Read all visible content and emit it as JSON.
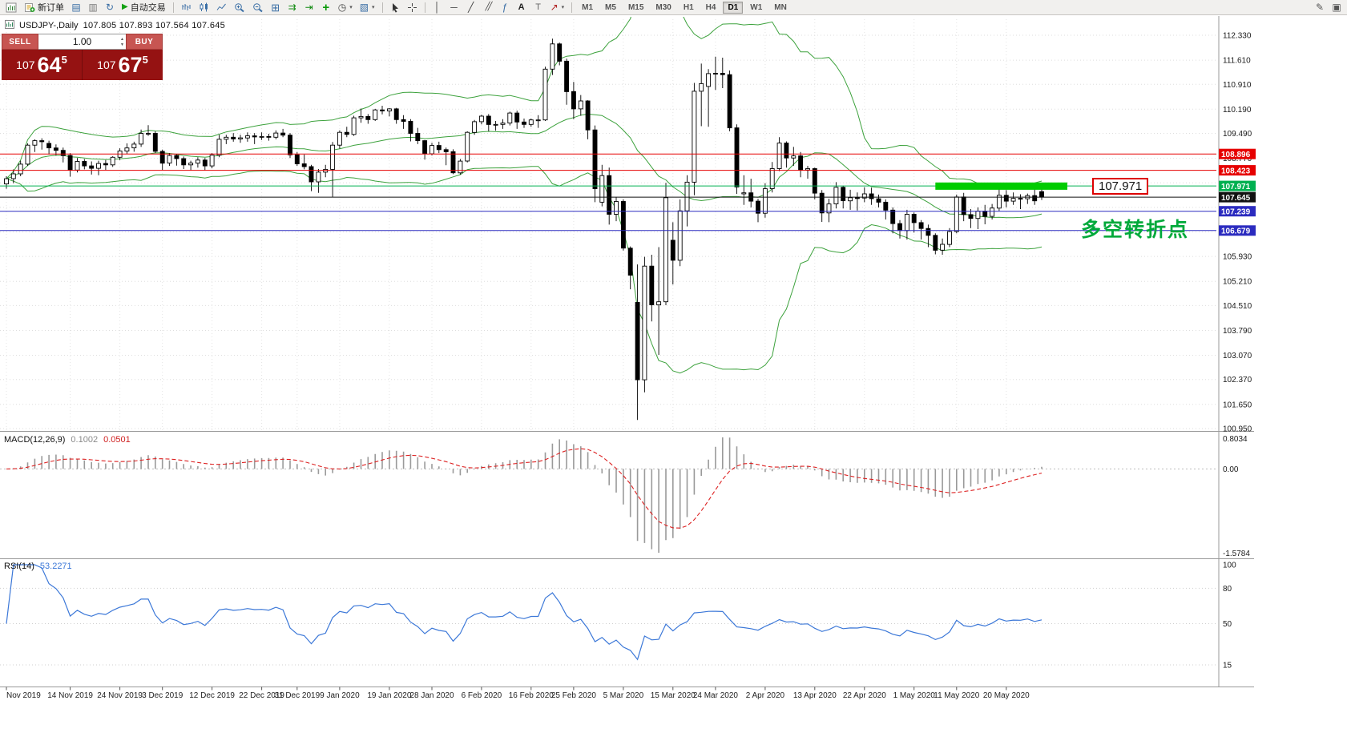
{
  "toolbar": {
    "items": [
      {
        "name": "new-chart-button",
        "icon": "newchart"
      },
      {
        "name": "new-order-button",
        "icon": "order",
        "label": "新订单"
      },
      {
        "name": "charts-icon",
        "icon": "chartswin"
      },
      {
        "name": "profiles-icon",
        "icon": "profiles"
      },
      {
        "name": "refresh-icon",
        "icon": "refresh"
      },
      {
        "name": "autotrading-button",
        "icon": "play",
        "label": "自动交易"
      },
      {
        "type": "sep"
      },
      {
        "name": "bar-chart-button",
        "icon": "bars"
      },
      {
        "name": "candlestick-chart-button",
        "icon": "candles"
      },
      {
        "name": "line-chart-button",
        "icon": "linechart"
      },
      {
        "name": "zoom-in-button",
        "icon": "zoomin"
      },
      {
        "name": "zoom-out-button",
        "icon": "zoomout"
      },
      {
        "name": "tile-windows-button",
        "icon": "tile"
      },
      {
        "name": "auto-scroll-button",
        "icon": "autoscroll"
      },
      {
        "name": "chart-shift-button",
        "icon": "shift"
      },
      {
        "name": "indicators-button",
        "icon": "plus"
      },
      {
        "name": "periods-dropdown",
        "icon": "clock",
        "dropdown": true
      },
      {
        "name": "templates-dropdown",
        "icon": "template",
        "dropdown": true
      },
      {
        "type": "sep"
      },
      {
        "name": "cursor-button",
        "icon": "cursor"
      },
      {
        "name": "crosshair-button",
        "icon": "crosshair"
      },
      {
        "type": "sep"
      },
      {
        "name": "vertical-line-button",
        "icon": "vline"
      },
      {
        "name": "horizontal-line-button",
        "icon": "hline"
      },
      {
        "name": "trendline-button",
        "icon": "tline"
      },
      {
        "name": "channel-button",
        "icon": "channel"
      },
      {
        "name": "fibonacci-button",
        "icon": "fibo"
      },
      {
        "name": "text-button",
        "icon": "textA"
      },
      {
        "name": "text-label-button",
        "icon": "labelT"
      },
      {
        "name": "arrows-dropdown",
        "icon": "arrow",
        "dropdown": true
      },
      {
        "type": "sep"
      },
      {
        "type": "timeframes"
      },
      {
        "type": "spacer"
      },
      {
        "name": "edit-icon",
        "icon": "edit"
      },
      {
        "name": "select-icon",
        "icon": "select"
      }
    ],
    "timeframes": [
      "M1",
      "M5",
      "M15",
      "M30",
      "H1",
      "H4",
      "D1",
      "W1",
      "MN"
    ],
    "active_timeframe": "D1"
  },
  "chart": {
    "symbol_period": "USDJPY-,Daily",
    "ohlc_values": "107.805 107.893 107.564 107.645"
  },
  "trade_panel": {
    "sell_label": "SELL",
    "buy_label": "BUY",
    "volume": "1.00",
    "sell_price": {
      "base": "107",
      "pips": "64",
      "sub": "5"
    },
    "buy_price": {
      "base": "107",
      "pips": "67",
      "sub": "5"
    }
  },
  "annotations": {
    "price_callout": "107.971",
    "turning_point_text": "多空转折点",
    "turning_point_color": "#00a93a"
  },
  "chart_data": {
    "type": "candlestick",
    "symbol": "USDJPY-",
    "timeframe": "Daily",
    "last_ohlc": {
      "open": 107.805,
      "high": 107.893,
      "low": 107.564,
      "close": 107.645
    },
    "candles": [
      [
        108.03,
        108.25,
        107.89,
        108.18
      ],
      [
        108.18,
        108.45,
        108.05,
        108.32
      ],
      [
        108.32,
        108.7,
        108.25,
        108.6
      ],
      [
        108.6,
        109.2,
        108.55,
        109.15
      ],
      [
        109.15,
        109.32,
        108.95,
        109.28
      ],
      [
        109.28,
        109.35,
        109.02,
        109.25
      ],
      [
        109.2,
        109.28,
        108.88,
        109.07
      ],
      [
        109.07,
        109.17,
        108.85,
        109.0
      ],
      [
        109.0,
        109.08,
        108.65,
        108.85
      ],
      [
        108.85,
        108.92,
        108.24,
        108.43
      ],
      [
        108.43,
        108.78,
        108.36,
        108.68
      ],
      [
        108.68,
        108.75,
        108.45,
        108.55
      ],
      [
        108.55,
        108.68,
        108.3,
        108.48
      ],
      [
        108.48,
        108.7,
        108.28,
        108.62
      ],
      [
        108.62,
        108.72,
        108.43,
        108.58
      ],
      [
        108.58,
        108.83,
        108.52,
        108.8
      ],
      [
        108.8,
        109.06,
        108.72,
        108.98
      ],
      [
        108.98,
        109.2,
        108.9,
        109.07
      ],
      [
        109.07,
        109.25,
        108.96,
        109.18
      ],
      [
        109.18,
        109.6,
        109.1,
        109.49
      ],
      [
        109.49,
        109.73,
        109.42,
        109.49
      ],
      [
        109.49,
        109.55,
        108.92,
        108.97
      ],
      [
        108.97,
        109.02,
        108.43,
        108.63
      ],
      [
        108.63,
        108.92,
        108.55,
        108.85
      ],
      [
        108.85,
        108.9,
        108.56,
        108.76
      ],
      [
        108.76,
        108.82,
        108.46,
        108.58
      ],
      [
        108.58,
        108.7,
        108.42,
        108.63
      ],
      [
        108.63,
        108.8,
        108.5,
        108.72
      ],
      [
        108.72,
        108.78,
        108.42,
        108.55
      ],
      [
        108.55,
        108.92,
        108.48,
        108.86
      ],
      [
        108.86,
        109.45,
        108.8,
        109.32
      ],
      [
        109.32,
        109.45,
        109.18,
        109.38
      ],
      [
        109.38,
        109.5,
        109.25,
        109.33
      ],
      [
        109.33,
        109.45,
        109.22,
        109.36
      ],
      [
        109.36,
        109.52,
        109.25,
        109.42
      ],
      [
        109.42,
        109.5,
        109.18,
        109.39
      ],
      [
        109.39,
        109.52,
        109.3,
        109.4
      ],
      [
        109.4,
        109.48,
        109.28,
        109.38
      ],
      [
        109.38,
        109.58,
        109.32,
        109.5
      ],
      [
        109.5,
        109.62,
        109.38,
        109.44
      ],
      [
        109.44,
        109.5,
        108.78,
        108.87
      ],
      [
        108.87,
        108.95,
        108.55,
        108.61
      ],
      [
        108.61,
        108.88,
        108.45,
        108.53
      ],
      [
        108.53,
        108.58,
        107.82,
        108.09
      ],
      [
        108.09,
        108.46,
        107.77,
        108.37
      ],
      [
        108.37,
        108.58,
        108.22,
        108.45
      ],
      [
        108.45,
        109.24,
        107.65,
        109.15
      ],
      [
        109.15,
        109.58,
        109.05,
        109.52
      ],
      [
        109.52,
        109.68,
        109.38,
        109.46
      ],
      [
        109.46,
        110.0,
        109.42,
        109.94
      ],
      [
        109.94,
        110.21,
        109.8,
        109.98
      ],
      [
        109.98,
        110.05,
        109.77,
        109.89
      ],
      [
        109.89,
        110.2,
        109.85,
        110.17
      ],
      [
        110.17,
        110.29,
        110.04,
        110.14
      ],
      [
        110.14,
        110.22,
        109.98,
        110.2
      ],
      [
        110.2,
        110.23,
        109.77,
        109.89
      ],
      [
        109.89,
        110.02,
        109.62,
        109.84
      ],
      [
        109.84,
        109.9,
        109.26,
        109.49
      ],
      [
        109.49,
        109.65,
        109.18,
        109.28
      ],
      [
        109.28,
        109.3,
        108.73,
        108.9
      ],
      [
        108.9,
        109.22,
        108.85,
        109.14
      ],
      [
        109.14,
        109.25,
        108.92,
        109.02
      ],
      [
        109.02,
        109.08,
        108.57,
        108.96
      ],
      [
        108.96,
        109.03,
        108.31,
        108.35
      ],
      [
        108.35,
        108.75,
        108.3,
        108.69
      ],
      [
        108.69,
        109.55,
        108.65,
        109.52
      ],
      [
        109.52,
        109.88,
        109.45,
        109.83
      ],
      [
        109.83,
        110.03,
        109.75,
        109.99
      ],
      [
        109.99,
        110.05,
        109.55,
        109.75
      ],
      [
        109.75,
        109.85,
        109.57,
        109.75
      ],
      [
        109.75,
        109.9,
        109.62,
        109.79
      ],
      [
        109.79,
        110.12,
        109.72,
        110.08
      ],
      [
        110.08,
        110.15,
        109.62,
        109.82
      ],
      [
        109.82,
        109.92,
        109.65,
        109.75
      ],
      [
        109.75,
        109.92,
        109.68,
        109.88
      ],
      [
        109.88,
        110.02,
        109.65,
        109.88
      ],
      [
        109.88,
        111.42,
        109.85,
        111.35
      ],
      [
        111.35,
        112.23,
        111.18,
        112.08
      ],
      [
        112.08,
        112.12,
        111.46,
        111.58
      ],
      [
        111.58,
        111.65,
        110.32,
        110.7
      ],
      [
        110.7,
        110.98,
        109.9,
        110.2
      ],
      [
        110.2,
        110.6,
        110.0,
        110.43
      ],
      [
        110.43,
        110.45,
        109.32,
        109.59
      ],
      [
        109.59,
        109.72,
        107.5,
        107.89
      ],
      [
        107.5,
        108.58,
        107.38,
        108.27
      ],
      [
        108.27,
        108.5,
        106.85,
        107.15
      ],
      [
        107.15,
        107.65,
        106.95,
        107.52
      ],
      [
        107.52,
        107.58,
        106.1,
        106.17
      ],
      [
        106.17,
        106.22,
        104.98,
        105.39
      ],
      [
        104.6,
        105.7,
        101.2,
        102.36
      ],
      [
        102.36,
        105.92,
        102.0,
        105.65
      ],
      [
        105.65,
        105.98,
        104.05,
        104.53
      ],
      [
        104.53,
        106.2,
        103.08,
        104.62
      ],
      [
        104.62,
        108.06,
        104.52,
        107.63
      ],
      [
        106.4,
        106.92,
        105.12,
        105.82
      ],
      [
        105.82,
        107.58,
        105.65,
        107.25
      ],
      [
        107.25,
        108.28,
        106.8,
        108.08
      ],
      [
        108.08,
        110.95,
        107.7,
        110.71
      ],
      [
        110.71,
        111.51,
        109.7,
        110.93
      ],
      [
        110.85,
        111.35,
        109.68,
        111.22
      ],
      [
        111.22,
        111.71,
        110.75,
        111.23
      ],
      [
        111.23,
        111.68,
        110.8,
        111.19
      ],
      [
        111.19,
        111.31,
        109.55,
        109.65
      ],
      [
        109.65,
        109.75,
        107.74,
        107.94
      ],
      [
        107.74,
        108.28,
        107.42,
        107.77
      ],
      [
        107.77,
        108.18,
        107.35,
        107.53
      ],
      [
        107.53,
        107.6,
        106.92,
        107.18
      ],
      [
        107.18,
        108.05,
        107.05,
        107.89
      ],
      [
        107.89,
        108.66,
        107.78,
        108.47
      ],
      [
        108.47,
        109.38,
        108.4,
        109.21
      ],
      [
        109.21,
        109.26,
        108.5,
        108.78
      ],
      [
        108.78,
        109.1,
        108.55,
        108.84
      ],
      [
        108.84,
        108.95,
        108.22,
        108.43
      ],
      [
        108.43,
        108.55,
        108.18,
        108.47
      ],
      [
        108.47,
        108.5,
        107.58,
        107.76
      ],
      [
        107.76,
        107.85,
        106.93,
        107.19
      ],
      [
        107.19,
        107.6,
        106.92,
        107.45
      ],
      [
        107.45,
        108.08,
        107.32,
        107.93
      ],
      [
        107.93,
        107.98,
        107.32,
        107.54
      ],
      [
        107.54,
        107.86,
        107.28,
        107.63
      ],
      [
        107.63,
        107.78,
        107.26,
        107.62
      ],
      [
        107.62,
        107.93,
        107.5,
        107.74
      ],
      [
        107.74,
        107.92,
        107.42,
        107.6
      ],
      [
        107.6,
        107.72,
        107.35,
        107.5
      ],
      [
        107.5,
        107.58,
        107.0,
        107.27
      ],
      [
        107.27,
        107.35,
        106.6,
        106.88
      ],
      [
        106.88,
        106.98,
        106.45,
        106.68
      ],
      [
        106.68,
        107.28,
        106.42,
        107.15
      ],
      [
        107.15,
        107.2,
        106.62,
        106.91
      ],
      [
        106.91,
        106.98,
        106.42,
        106.74
      ],
      [
        106.74,
        106.85,
        106.2,
        106.54
      ],
      [
        106.54,
        106.6,
        105.99,
        106.11
      ],
      [
        106.11,
        106.45,
        105.98,
        106.28
      ],
      [
        106.28,
        106.75,
        106.2,
        106.65
      ],
      [
        106.65,
        107.72,
        106.6,
        107.65
      ],
      [
        107.65,
        107.77,
        106.95,
        107.14
      ],
      [
        107.14,
        107.3,
        106.75,
        107.03
      ],
      [
        107.03,
        107.35,
        106.72,
        107.24
      ],
      [
        107.24,
        107.42,
        106.86,
        107.09
      ],
      [
        107.09,
        107.45,
        107.0,
        107.33
      ],
      [
        107.33,
        107.95,
        107.25,
        107.7
      ],
      [
        107.7,
        107.85,
        107.35,
        107.53
      ],
      [
        107.53,
        107.78,
        107.42,
        107.61
      ],
      [
        107.61,
        107.73,
        107.3,
        107.6
      ],
      [
        107.6,
        107.75,
        107.45,
        107.69
      ],
      [
        107.69,
        107.92,
        107.42,
        107.54
      ],
      [
        107.805,
        107.893,
        107.564,
        107.645
      ]
    ],
    "x_ticks": [
      {
        "label": "Nov 2019",
        "index": 0
      },
      {
        "label": "14 Nov 2019",
        "index": 9
      },
      {
        "label": "24 Nov 2019",
        "index": 16
      },
      {
        "label": "3 Dec 2019",
        "index": 22
      },
      {
        "label": "12 Dec 2019",
        "index": 29
      },
      {
        "label": "22 Dec 2019",
        "index": 36
      },
      {
        "label": "31 Dec 2019",
        "index": 41
      },
      {
        "label": "9 Jan 2020",
        "index": 47
      },
      {
        "label": "19 Jan 2020",
        "index": 54
      },
      {
        "label": "28 Jan 2020",
        "index": 60
      },
      {
        "label": "6 Feb 2020",
        "index": 67
      },
      {
        "label": "16 Feb 2020",
        "index": 74
      },
      {
        "label": "25 Feb 2020",
        "index": 80
      },
      {
        "label": "5 Mar 2020",
        "index": 87
      },
      {
        "label": "15 Mar 2020",
        "index": 94
      },
      {
        "label": "24 Mar 2020",
        "index": 100
      },
      {
        "label": "2 Apr 2020",
        "index": 107
      },
      {
        "label": "13 Apr 2020",
        "index": 114
      },
      {
        "label": "22 Apr 2020",
        "index": 121
      },
      {
        "label": "1 May 2020",
        "index": 128
      },
      {
        "label": "11 May 2020",
        "index": 134
      },
      {
        "label": "20 May 2020",
        "index": 141
      }
    ],
    "price_axis": [
      {
        "p": 112.33,
        "label": "112.330"
      },
      {
        "p": 111.61,
        "label": "111.610"
      },
      {
        "p": 110.91,
        "label": "110.910"
      },
      {
        "p": 110.19,
        "label": "110.190"
      },
      {
        "p": 109.49,
        "label": "109.490"
      },
      {
        "p": 108.77,
        "label": "108.770"
      },
      {
        "p": 108.06,
        "label": ""
      },
      {
        "p": 107.35,
        "label": ""
      },
      {
        "p": 106.64,
        "label": ""
      },
      {
        "p": 105.93,
        "label": "105.930"
      },
      {
        "p": 105.21,
        "label": "105.210"
      },
      {
        "p": 104.51,
        "label": "104.510"
      },
      {
        "p": 103.79,
        "label": "103.790"
      },
      {
        "p": 103.07,
        "label": "103.070"
      },
      {
        "p": 102.37,
        "label": "102.370"
      },
      {
        "p": 101.65,
        "label": "101.650"
      },
      {
        "p": 100.95,
        "label": "100.950"
      }
    ],
    "hlines": [
      {
        "price": 108.896,
        "label": "108.896",
        "color": "#e60000"
      },
      {
        "price": 108.423,
        "label": "108.423",
        "color": "#e60000"
      },
      {
        "price": 107.971,
        "label": "107.971",
        "color": "#00b050"
      },
      {
        "price": 107.645,
        "label": "107.645",
        "color": "#111111",
        "bid": true
      },
      {
        "price": 107.239,
        "label": "107.239",
        "color": "#2b2bbf"
      },
      {
        "price": 106.679,
        "label": "106.679",
        "color": "#2b2bbf"
      }
    ],
    "rectangle": {
      "from_index": 131,
      "to_x": 1332,
      "price_top": 108.07,
      "price_bottom": 107.86,
      "color": "#00cc00"
    },
    "indicators": {
      "bollinger": {
        "period": 20,
        "deviation": 2,
        "color": "#3da23d"
      },
      "macd": {
        "name": "MACD(12,26,9)",
        "value_main": "0.1002",
        "value_signal": "0.0501",
        "axis_max": "0.8034",
        "axis_zero": "0.00",
        "axis_min": "-1.5784",
        "histogram_color": "#9a9a9a",
        "signal_color": "#dd2222"
      },
      "rsi": {
        "name": "RSI(14)",
        "value": "53.2271",
        "color": "#3c78d8",
        "axis": [
          {
            "v": 100,
            "label": "100"
          },
          {
            "v": 80,
            "label": "80"
          },
          {
            "v": 50,
            "label": "50"
          },
          {
            "v": 15,
            "label": "15"
          }
        ]
      }
    }
  }
}
